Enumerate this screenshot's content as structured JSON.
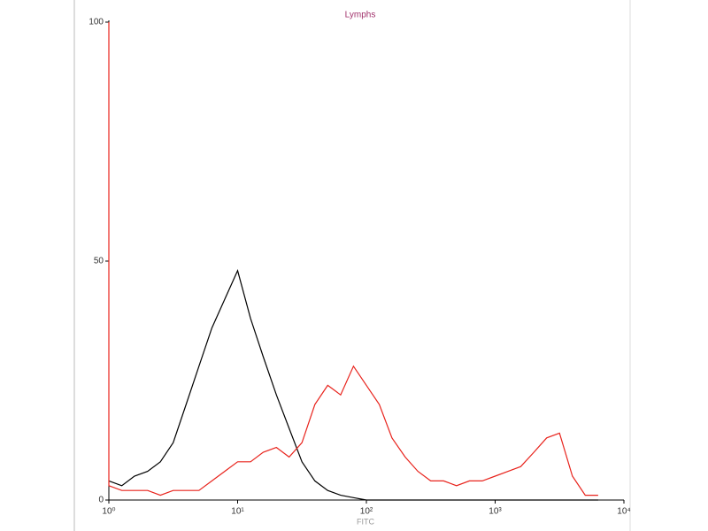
{
  "chart_data": {
    "type": "line",
    "title": "Lymphs",
    "x_label": "FITC",
    "x": [
      1,
      1,
      1.26,
      1.58,
      2,
      2.51,
      3.16,
      3.98,
      5.01,
      6.31,
      7.94,
      10,
      12.6,
      15.8,
      20,
      25.1,
      31.6,
      39.8,
      50.1,
      63.1,
      79.4,
      100,
      126,
      158,
      200,
      251,
      316,
      398,
      501,
      631,
      794,
      1000,
      1260,
      1580,
      2000,
      2510,
      3160,
      3980,
      5010,
      6310
    ],
    "series": [
      {
        "color": "#000000",
        "values": [
          null,
          4,
          3,
          5,
          6,
          8,
          12,
          20,
          28,
          36,
          42,
          48,
          38,
          30,
          22,
          15,
          8,
          4,
          2,
          1,
          0.5,
          0,
          0,
          0,
          0,
          0,
          0,
          0,
          0,
          0,
          0,
          0,
          0,
          0,
          0,
          0,
          0,
          0,
          0,
          0
        ]
      },
      {
        "color": "#e8231c",
        "values": [
          100,
          3,
          2,
          2,
          2,
          1,
          2,
          2,
          2,
          4,
          6,
          8,
          8,
          10,
          11,
          9,
          12,
          20,
          24,
          22,
          28,
          24,
          20,
          13,
          9,
          6,
          4,
          4,
          3,
          4,
          4,
          5,
          6,
          7,
          10,
          13,
          14,
          5,
          1,
          1
        ]
      }
    ],
    "xscale": "log",
    "xlim": [
      1,
      10000
    ],
    "xticks": [
      {
        "value": 1,
        "label": "10⁰"
      },
      {
        "value": 10,
        "label": "10¹"
      },
      {
        "value": 100,
        "label": "10²"
      },
      {
        "value": 1000,
        "label": "10³"
      },
      {
        "value": 10000,
        "label": "10⁴"
      }
    ],
    "ylim": [
      0,
      100
    ],
    "yticks": [
      0,
      50,
      100
    ],
    "grid": false
  }
}
